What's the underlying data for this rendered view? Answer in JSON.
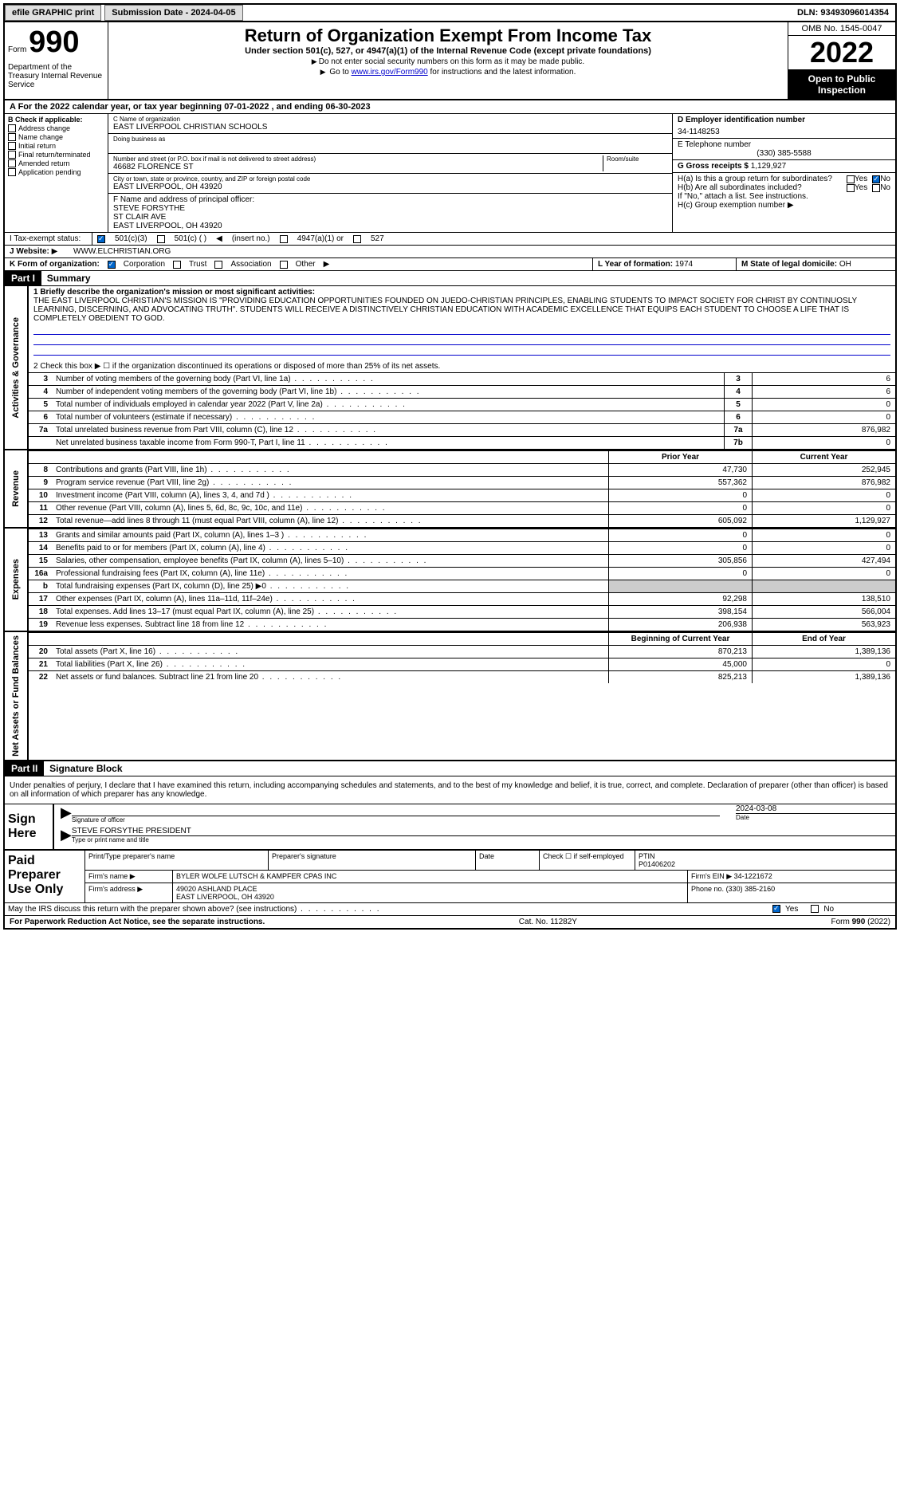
{
  "top": {
    "efile": "efile GRAPHIC print",
    "submission": "Submission Date - 2024-04-05",
    "dln": "DLN: 93493096014354"
  },
  "header": {
    "form_word": "Form",
    "form_num": "990",
    "dept": "Department of the Treasury Internal Revenue Service",
    "title": "Return of Organization Exempt From Income Tax",
    "subtitle": "Under section 501(c), 527, or 4947(a)(1) of the Internal Revenue Code (except private foundations)",
    "instr1": "Do not enter social security numbers on this form as it may be made public.",
    "instr2_pre": "Go to ",
    "instr2_link": "www.irs.gov/Form990",
    "instr2_post": " for instructions and the latest information.",
    "omb": "OMB No. 1545-0047",
    "year": "2022",
    "open": "Open to Public Inspection"
  },
  "a": {
    "text": "A For the 2022 calendar year, or tax year beginning 07-01-2022    , and ending 06-30-2023"
  },
  "b": {
    "title": "B Check if applicable:",
    "items": [
      "Address change",
      "Name change",
      "Initial return",
      "Final return/terminated",
      "Amended return",
      "Application pending"
    ]
  },
  "c": {
    "label": "C Name of organization",
    "name": "EAST LIVERPOOL CHRISTIAN SCHOOLS",
    "dba_label": "Doing business as",
    "addr_label": "Number and street (or P.O. box if mail is not delivered to street address)",
    "room_label": "Room/suite",
    "addr": "46682 FLORENCE ST",
    "city_label": "City or town, state or province, country, and ZIP or foreign postal code",
    "city": "EAST LIVERPOOL, OH  43920"
  },
  "d": {
    "label": "D Employer identification number",
    "val": "34-1148253"
  },
  "e": {
    "label": "E Telephone number",
    "val": "(330) 385-5588"
  },
  "g": {
    "label": "G Gross receipts $",
    "val": "1,129,927"
  },
  "f": {
    "label": "F  Name and address of principal officer:",
    "name": "STEVE FORSYTHE",
    "addr1": "ST CLAIR AVE",
    "addr2": "EAST LIVERPOOL, OH  43920"
  },
  "h": {
    "a": "H(a)  Is this a group return for subordinates?",
    "b": "H(b)  Are all subordinates included?",
    "b_note": "If \"No,\" attach a list. See instructions.",
    "c": "H(c)  Group exemption number"
  },
  "i": {
    "label": "I    Tax-exempt status:",
    "opts": [
      "501(c)(3)",
      "501(c) (  )",
      "(insert no.)",
      "4947(a)(1) or",
      "527"
    ]
  },
  "j": {
    "label": "J   Website:",
    "val": "WWW.ELCHRISTIAN.ORG"
  },
  "k": {
    "label": "K Form of organization:",
    "opts": [
      "Corporation",
      "Trust",
      "Association",
      "Other"
    ]
  },
  "l": {
    "label": "L Year of formation:",
    "val": "1974"
  },
  "m": {
    "label": "M State of legal domicile:",
    "val": "OH"
  },
  "parts": {
    "p1": "Part I",
    "p1_title": "Summary",
    "p2": "Part II",
    "p2_title": "Signature Block"
  },
  "summary": {
    "line1_label": "1   Briefly describe the organization's mission or most significant activities:",
    "mission": "THE EAST LIVERPOOL CHRISTIAN'S MISSION IS \"PROVIDING EDUCATION OPPORTUNITIES FOUNDED ON JUEDO-CHRISTIAN PRINCIPLES, ENABLING STUDENTS TO IMPACT SOCIETY FOR CHRIST BY CONTINUOSLY LEARNING, DISCERNING, AND ADVOCATING TRUTH\". STUDENTS WILL RECEIVE A DISTINCTIVELY CHRISTIAN EDUCATION WITH ACADEMIC EXCELLENCE THAT EQUIPS EACH STUDENT TO CHOOSE A LIFE THAT IS COMPLETELY OBEDIENT TO GOD.",
    "line2": "2     Check this box ▶ ☐  if the organization discontinued its operations or disposed of more than 25% of its net assets.",
    "rows_single": [
      {
        "n": "3",
        "d": "Number of voting members of the governing body (Part VI, line 1a)",
        "b": "3",
        "v": "6"
      },
      {
        "n": "4",
        "d": "Number of independent voting members of the governing body (Part VI, line 1b)",
        "b": "4",
        "v": "6"
      },
      {
        "n": "5",
        "d": "Total number of individuals employed in calendar year 2022 (Part V, line 2a)",
        "b": "5",
        "v": "0"
      },
      {
        "n": "6",
        "d": "Total number of volunteers (estimate if necessary)",
        "b": "6",
        "v": "0"
      },
      {
        "n": "7a",
        "d": "Total unrelated business revenue from Part VIII, column (C), line 12",
        "b": "7a",
        "v": "876,982"
      },
      {
        "n": "",
        "d": "Net unrelated business taxable income from Form 990-T, Part I, line 11",
        "b": "7b",
        "v": "0"
      }
    ],
    "col_prior": "Prior Year",
    "col_current": "Current Year",
    "revenue": [
      {
        "n": "8",
        "d": "Contributions and grants (Part VIII, line 1h)",
        "p": "47,730",
        "c": "252,945"
      },
      {
        "n": "9",
        "d": "Program service revenue (Part VIII, line 2g)",
        "p": "557,362",
        "c": "876,982"
      },
      {
        "n": "10",
        "d": "Investment income (Part VIII, column (A), lines 3, 4, and 7d )",
        "p": "0",
        "c": "0"
      },
      {
        "n": "11",
        "d": "Other revenue (Part VIII, column (A), lines 5, 6d, 8c, 9c, 10c, and 11e)",
        "p": "0",
        "c": "0"
      },
      {
        "n": "12",
        "d": "Total revenue—add lines 8 through 11 (must equal Part VIII, column (A), line 12)",
        "p": "605,092",
        "c": "1,129,927"
      }
    ],
    "expenses": [
      {
        "n": "13",
        "d": "Grants and similar amounts paid (Part IX, column (A), lines 1–3 )",
        "p": "0",
        "c": "0"
      },
      {
        "n": "14",
        "d": "Benefits paid to or for members (Part IX, column (A), line 4)",
        "p": "0",
        "c": "0"
      },
      {
        "n": "15",
        "d": "Salaries, other compensation, employee benefits (Part IX, column (A), lines 5–10)",
        "p": "305,856",
        "c": "427,494"
      },
      {
        "n": "16a",
        "d": "Professional fundraising fees (Part IX, column (A), line 11e)",
        "p": "0",
        "c": "0"
      },
      {
        "n": "b",
        "d": "Total fundraising expenses (Part IX, column (D), line 25) ▶0",
        "p": "",
        "c": "",
        "gray": true
      },
      {
        "n": "17",
        "d": "Other expenses (Part IX, column (A), lines 11a–11d, 11f–24e)",
        "p": "92,298",
        "c": "138,510"
      },
      {
        "n": "18",
        "d": "Total expenses. Add lines 13–17 (must equal Part IX, column (A), line 25)",
        "p": "398,154",
        "c": "566,004"
      },
      {
        "n": "19",
        "d": "Revenue less expenses. Subtract line 18 from line 12",
        "p": "206,938",
        "c": "563,923"
      }
    ],
    "col_begin": "Beginning of Current Year",
    "col_end": "End of Year",
    "netassets": [
      {
        "n": "20",
        "d": "Total assets (Part X, line 16)",
        "p": "870,213",
        "c": "1,389,136"
      },
      {
        "n": "21",
        "d": "Total liabilities (Part X, line 26)",
        "p": "45,000",
        "c": "0"
      },
      {
        "n": "22",
        "d": "Net assets or fund balances. Subtract line 21 from line 20",
        "p": "825,213",
        "c": "1,389,136"
      }
    ]
  },
  "sidelabels": {
    "gov": "Activities & Governance",
    "rev": "Revenue",
    "exp": "Expenses",
    "net": "Net Assets or Fund Balances"
  },
  "sig": {
    "decl": "Under penalties of perjury, I declare that I have examined this return, including accompanying schedules and statements, and to the best of my knowledge and belief, it is true, correct, and complete. Declaration of preparer (other than officer) is based on all information of which preparer has any knowledge.",
    "sign_here": "Sign Here",
    "sig_officer": "Signature of officer",
    "date_label": "Date",
    "date": "2024-03-08",
    "name_title": "STEVE FORSYTHE  PRESIDENT",
    "type_name": "Type or print name and title"
  },
  "prep": {
    "title": "Paid Preparer Use Only",
    "h1": "Print/Type preparer's name",
    "h2": "Preparer's signature",
    "h3": "Date",
    "h4": "Check ☐ if self-employed",
    "h5": "PTIN",
    "ptin": "P01406202",
    "firm_name_label": "Firm's name    ▶",
    "firm_name": "BYLER WOLFE LUTSCH & KAMPFER CPAS INC",
    "firm_ein_label": "Firm's EIN ▶",
    "firm_ein": "34-1221672",
    "firm_addr_label": "Firm's address ▶",
    "firm_addr1": "49020 ASHLAND PLACE",
    "firm_addr2": "EAST LIVERPOOL, OH  43920",
    "phone_label": "Phone no.",
    "phone": "(330) 385-2160",
    "discuss": "May the IRS discuss this return with the preparer shown above? (see instructions)"
  },
  "footer": {
    "left": "For Paperwork Reduction Act Notice, see the separate instructions.",
    "mid": "Cat. No. 11282Y",
    "right": "Form 990 (2022)"
  }
}
